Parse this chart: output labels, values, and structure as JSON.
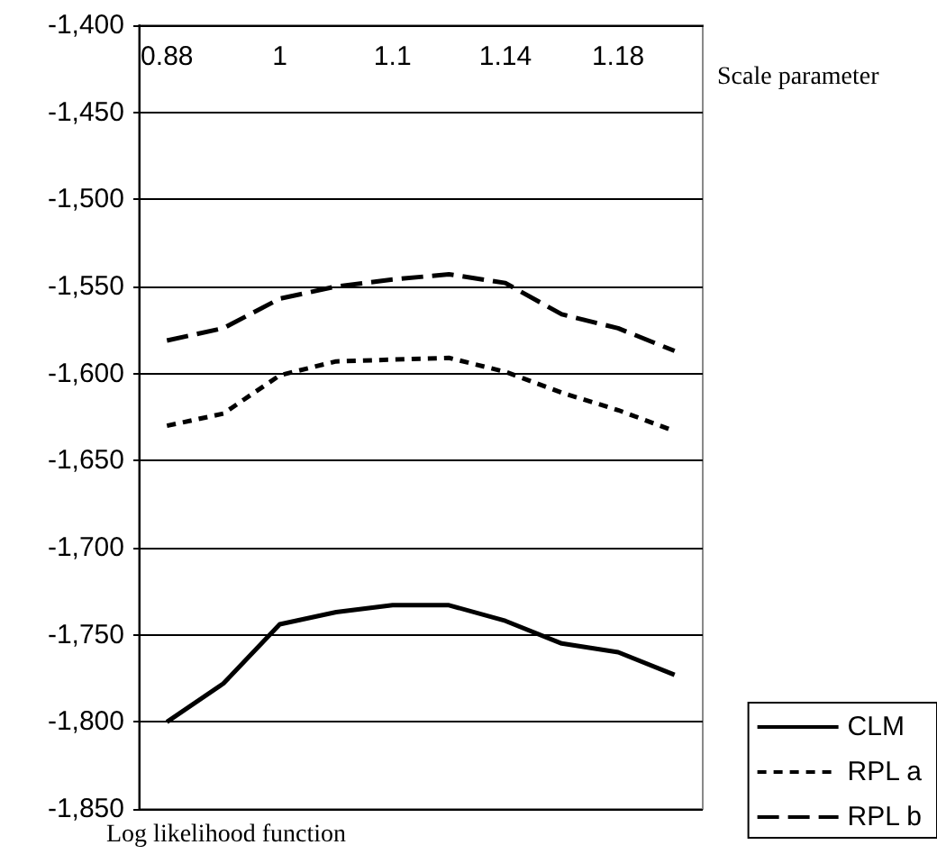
{
  "chart_data": {
    "type": "line",
    "xlabel": "Scale parameter",
    "ylabel": "Log likelihood function",
    "categories": [
      "0.88",
      null,
      "1",
      null,
      "1.1",
      null,
      "1.14",
      null,
      "1.18",
      null
    ],
    "series": [
      {
        "name": "CLM",
        "color": "#000000",
        "line_style": "solid",
        "values": [
          -1800,
          -1778,
          -1744,
          -1737,
          -1733,
          -1733,
          -1742,
          -1755,
          -1760,
          -1773
        ]
      },
      {
        "name": "RPL a",
        "color": "#000000",
        "line_style": "dotted",
        "values": [
          -1630,
          -1623,
          -1601,
          -1593,
          -1592,
          -1591,
          -1599,
          -1611,
          -1621,
          -1633
        ]
      },
      {
        "name": "RPL b",
        "color": "#000000",
        "line_style": "dashed",
        "values": [
          -1581,
          -1574,
          -1557,
          -1550,
          -1546,
          -1543,
          -1548,
          -1566,
          -1574,
          -1587
        ]
      }
    ],
    "ylim": [
      -1850,
      -1400
    ],
    "yticks": [
      {
        "value": -1850,
        "label": "-1,850"
      },
      {
        "value": -1800,
        "label": "-1,800"
      },
      {
        "value": -1750,
        "label": "-1,750"
      },
      {
        "value": -1700,
        "label": "-1,700"
      },
      {
        "value": -1650,
        "label": "-1,650"
      },
      {
        "value": -1600,
        "label": "-1,600"
      },
      {
        "value": -1550,
        "label": "-1,550"
      },
      {
        "value": -1500,
        "label": "-1,500"
      },
      {
        "value": -1450,
        "label": "-1,450"
      },
      {
        "value": -1400,
        "label": "-1,400"
      }
    ],
    "grid": "y",
    "legend": "bottom right",
    "marker": "none"
  }
}
